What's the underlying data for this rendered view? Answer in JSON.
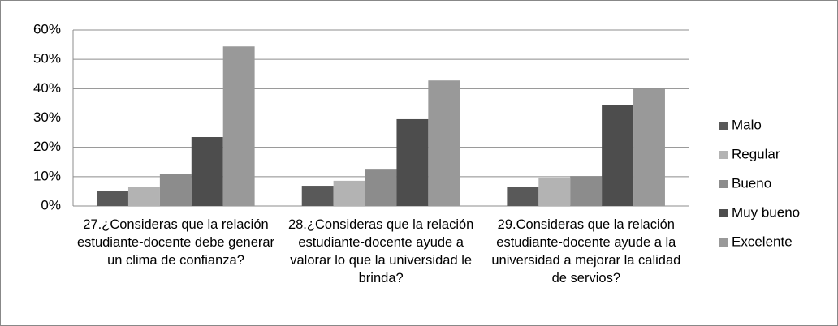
{
  "chart_data": {
    "type": "bar",
    "categories": [
      "27.¿Consideras que la relación estudiante-docente debe generar un clima de confianza?",
      "28.¿Consideras que la relación estudiante-docente ayude a valorar lo que la universidad le brinda?",
      "29.Consideras que la relación estudiante-docente ayude a la universidad a mejorar la calidad de servios?"
    ],
    "series": [
      {
        "name": "Malo",
        "color": "#595959",
        "values": [
          5.0,
          6.9,
          6.6
        ]
      },
      {
        "name": "Regular",
        "color": "#b3b3b3",
        "values": [
          6.4,
          8.6,
          9.7
        ]
      },
      {
        "name": "Bueno",
        "color": "#8c8c8c",
        "values": [
          11.0,
          12.4,
          10.2
        ]
      },
      {
        "name": "Muy bueno",
        "color": "#4d4d4d",
        "values": [
          23.5,
          29.6,
          34.3
        ]
      },
      {
        "name": "Excelente",
        "color": "#999999",
        "values": [
          54.4,
          42.8,
          40.0
        ]
      }
    ],
    "ylim": [
      0,
      60
    ],
    "yticks": [
      {
        "value": 0,
        "label": "0%"
      },
      {
        "value": 10,
        "label": "10%"
      },
      {
        "value": 20,
        "label": "20%"
      },
      {
        "value": 30,
        "label": "30%"
      },
      {
        "value": 40,
        "label": "40%"
      },
      {
        "value": 50,
        "label": "50%"
      },
      {
        "value": 60,
        "label": "60%"
      }
    ],
    "grid": true,
    "legend": "right"
  }
}
